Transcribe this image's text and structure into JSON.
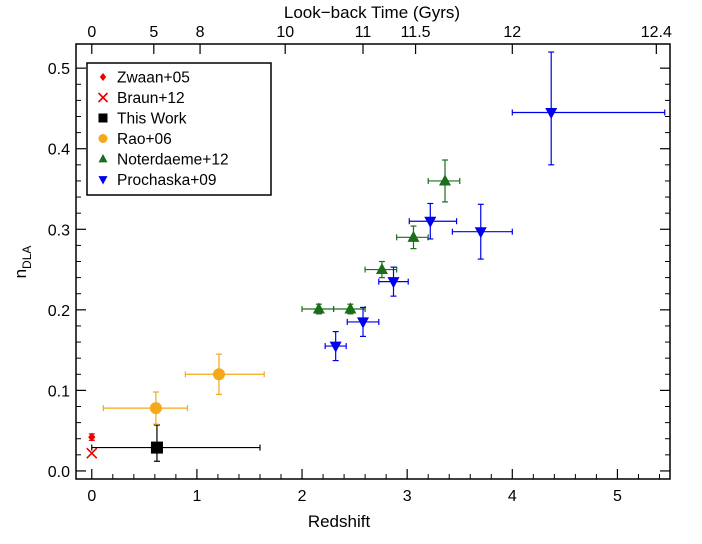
{
  "chart_data": {
    "type": "scatter",
    "xlabel": "Redshift",
    "ylabel_main": "n",
    "ylabel_sub": "DLA",
    "top_xlabel": "Look−back Time (Gyrs)",
    "xlim": [
      -0.15,
      5.5
    ],
    "ylim": [
      -0.01,
      0.53
    ],
    "xticks": [
      {
        "value": 0,
        "label": "0"
      },
      {
        "value": 1,
        "label": "1"
      },
      {
        "value": 2,
        "label": "2"
      },
      {
        "value": 3,
        "label": "3"
      },
      {
        "value": 4,
        "label": "4"
      },
      {
        "value": 5,
        "label": "5"
      }
    ],
    "yticks": [
      {
        "value": 0.0,
        "label": "0.0"
      },
      {
        "value": 0.1,
        "label": "0.1"
      },
      {
        "value": 0.2,
        "label": "0.2"
      },
      {
        "value": 0.3,
        "label": "0.3"
      },
      {
        "value": 0.4,
        "label": "0.4"
      },
      {
        "value": 0.5,
        "label": "0.5"
      }
    ],
    "top_ticks": [
      {
        "z": 0.0,
        "label": "0"
      },
      {
        "z": 0.59,
        "label": "5"
      },
      {
        "z": 1.03,
        "label": "8"
      },
      {
        "z": 1.84,
        "label": "10"
      },
      {
        "z": 2.58,
        "label": "11"
      },
      {
        "z": 3.08,
        "label": "11.5"
      },
      {
        "z": 4.0,
        "label": "12"
      },
      {
        "z": 5.37,
        "label": "12.4"
      }
    ],
    "series": [
      {
        "name": "Zwaan+05",
        "marker": "diamond",
        "color": "#ee0000",
        "points": [
          {
            "x": 0.0,
            "y": 0.042,
            "xerr": [
              0,
              0
            ],
            "yerr": [
              0.004,
              0.004
            ]
          }
        ]
      },
      {
        "name": "Braun+12",
        "marker": "x",
        "color": "#ee0000",
        "points": [
          {
            "x": 0.0,
            "y": 0.022,
            "xerr": [
              0,
              0
            ],
            "yerr": [
              0,
              0
            ]
          }
        ]
      },
      {
        "name": "This Work",
        "marker": "square",
        "color": "#000000",
        "points": [
          {
            "x": 0.62,
            "y": 0.029,
            "xerr": [
              0.62,
              0.98
            ],
            "yerr": [
              0.017,
              0.028
            ]
          }
        ]
      },
      {
        "name": "Rao+06",
        "marker": "circle",
        "color": "#f5a81a",
        "points": [
          {
            "x": 0.61,
            "y": 0.078,
            "xerr": [
              0.5,
              0.3
            ],
            "yerr": [
              0.02,
              0.02
            ]
          },
          {
            "x": 1.21,
            "y": 0.12,
            "xerr": [
              0.32,
              0.43
            ],
            "yerr": [
              0.025,
              0.025
            ]
          }
        ]
      },
      {
        "name": "Noterdaeme+12",
        "marker": "triangle-up",
        "color": "#1a6e1a",
        "points": [
          {
            "x": 2.16,
            "y": 0.201,
            "xerr": [
              0.16,
              0.14
            ],
            "yerr": [
              0.006,
              0.006
            ]
          },
          {
            "x": 2.46,
            "y": 0.201,
            "xerr": [
              0.16,
              0.14
            ],
            "yerr": [
              0.006,
              0.006
            ]
          },
          {
            "x": 2.76,
            "y": 0.25,
            "xerr": [
              0.16,
              0.14
            ],
            "yerr": [
              0.01,
              0.01
            ]
          },
          {
            "x": 3.06,
            "y": 0.29,
            "xerr": [
              0.16,
              0.14
            ],
            "yerr": [
              0.014,
              0.014
            ]
          },
          {
            "x": 3.36,
            "y": 0.36,
            "xerr": [
              0.16,
              0.14
            ],
            "yerr": [
              0.026,
              0.026
            ]
          }
        ]
      },
      {
        "name": "Prochaska+09",
        "marker": "triangle-down",
        "color": "#0000ee",
        "points": [
          {
            "x": 2.32,
            "y": 0.155,
            "xerr": [
              0.1,
              0.1
            ],
            "yerr": [
              0.018,
              0.018
            ]
          },
          {
            "x": 2.58,
            "y": 0.185,
            "xerr": [
              0.15,
              0.15
            ],
            "yerr": [
              0.018,
              0.018
            ]
          },
          {
            "x": 2.87,
            "y": 0.235,
            "xerr": [
              0.14,
              0.14
            ],
            "yerr": [
              0.018,
              0.018
            ]
          },
          {
            "x": 3.22,
            "y": 0.31,
            "xerr": [
              0.2,
              0.25
            ],
            "yerr": [
              0.022,
              0.022
            ]
          },
          {
            "x": 3.7,
            "y": 0.297,
            "xerr": [
              0.27,
              0.3
            ],
            "yerr": [
              0.034,
              0.034
            ]
          },
          {
            "x": 4.37,
            "y": 0.445,
            "xerr": [
              0.37,
              1.08
            ],
            "yerr": [
              0.065,
              0.075
            ]
          }
        ]
      }
    ]
  }
}
